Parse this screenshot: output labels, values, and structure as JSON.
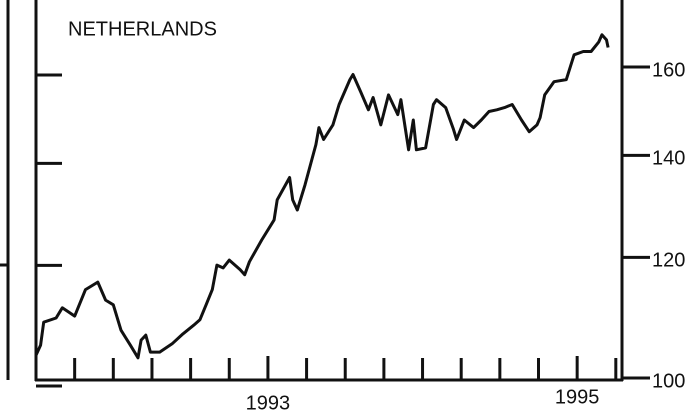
{
  "chart_data": {
    "type": "line",
    "title": "NETHERLANDS",
    "yscale": "log",
    "xlim": [
      1991.5,
      1995.29
    ],
    "xticks": [
      1993,
      1995
    ],
    "xticks_minor": [
      1991.75,
      1992,
      1992.25,
      1992.5,
      1992.75,
      1993.25,
      1993.5,
      1993.75,
      1994,
      1994.25,
      1994.5,
      1994.75,
      1995.25
    ],
    "ylim": [
      100,
      176
    ],
    "yticks": [
      100,
      120,
      140,
      160
    ],
    "series": [
      {
        "color": "#111111",
        "x": [
          1991.5,
          1991.53,
          1991.55,
          1991.63,
          1991.67,
          1991.75,
          1991.82,
          1991.9,
          1991.95,
          1992.0,
          1992.05,
          1992.11,
          1992.16,
          1992.18,
          1992.21,
          1992.24,
          1992.3,
          1992.38,
          1992.45,
          1992.52,
          1992.56,
          1992.6,
          1992.64,
          1992.67,
          1992.71,
          1992.75,
          1992.82,
          1992.85,
          1992.88,
          1992.96,
          1993.04,
          1993.06,
          1993.14,
          1993.16,
          1993.19,
          1993.24,
          1993.31,
          1993.33,
          1993.36,
          1993.42,
          1993.46,
          1993.53,
          1993.55,
          1993.6,
          1993.65,
          1993.68,
          1993.73,
          1993.78,
          1993.84,
          1993.86,
          1993.91,
          1993.94,
          1993.96,
          1994.02,
          1994.07,
          1994.09,
          1994.15,
          1994.2,
          1994.22,
          1994.27,
          1994.33,
          1994.38,
          1994.43,
          1994.48,
          1994.53,
          1994.58,
          1994.64,
          1994.69,
          1994.74,
          1994.76,
          1994.79,
          1994.85,
          1994.93,
          1994.98,
          1995.04,
          1995.09,
          1995.14,
          1995.16,
          1995.19,
          1995.2
        ],
        "values": [
          103.5,
          105.1,
          108.8,
          109.5,
          111.2,
          109.8,
          114.3,
          115.6,
          112.5,
          111.7,
          107.5,
          105.1,
          103.1,
          105.9,
          106.7,
          104.0,
          104.0,
          105.3,
          106.9,
          108.3,
          109.2,
          111.7,
          114.3,
          118.6,
          118.1,
          119.5,
          117.8,
          116.9,
          119.2,
          123.2,
          127.0,
          130.9,
          135.4,
          130.9,
          128.9,
          133.9,
          142.3,
          146.0,
          143.4,
          146.6,
          151.2,
          157.0,
          158.2,
          154.1,
          150.0,
          152.8,
          146.6,
          153.4,
          148.9,
          152.3,
          141.2,
          147.7,
          141.2,
          141.6,
          151.2,
          152.3,
          150.5,
          145.6,
          143.4,
          147.7,
          146.0,
          147.7,
          149.6,
          150.0,
          150.5,
          151.2,
          147.7,
          145.1,
          146.6,
          148.2,
          153.4,
          156.5,
          157.0,
          163.0,
          163.8,
          163.8,
          166.2,
          168.0,
          166.7,
          164.8
        ]
      }
    ]
  }
}
